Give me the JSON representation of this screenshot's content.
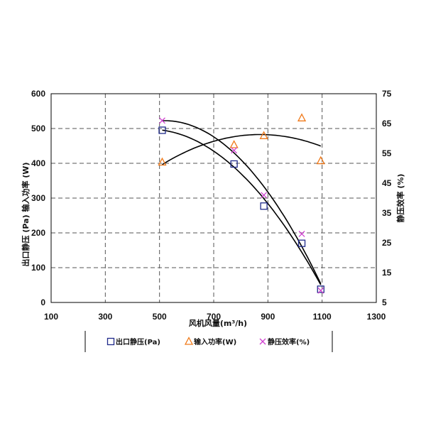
{
  "chart_data": {
    "type": "scatter",
    "xlabel": "风机风量(m³/h)",
    "ylabel_left": "出口静压 (Pa) 输入功率 (W)",
    "ylabel_right": "静压效率 (%)",
    "xlim": [
      100,
      1300
    ],
    "xticks": [
      100,
      300,
      500,
      700,
      900,
      1100,
      1300
    ],
    "ylim_left": [
      0,
      600
    ],
    "yticks_left": [
      0,
      100,
      200,
      300,
      400,
      500,
      600
    ],
    "ylim_right": [
      5,
      75
    ],
    "yticks_right": [
      5,
      15,
      25,
      35,
      45,
      55,
      65,
      75
    ],
    "grid": true,
    "legend_position": "bottom",
    "series": [
      {
        "name": "出口静压(Pa)",
        "axis": "left",
        "marker": "square",
        "color": "#1f2a8a",
        "x": [
          510,
          775,
          885,
          1025,
          1095
        ],
        "y": [
          495,
          398,
          277,
          170,
          38
        ]
      },
      {
        "name": "输入功率(W)",
        "axis": "left",
        "marker": "triangle",
        "color": "#f07a1a",
        "x": [
          510,
          775,
          885,
          1025,
          1095
        ],
        "y": [
          403,
          453,
          479,
          530,
          407
        ]
      },
      {
        "name": "静压效率(%)",
        "axis": "right",
        "marker": "x",
        "color": "#d040d0",
        "x": [
          510,
          775,
          885,
          1025,
          1095
        ],
        "y": [
          66,
          56,
          41,
          28,
          9
        ]
      }
    ]
  }
}
